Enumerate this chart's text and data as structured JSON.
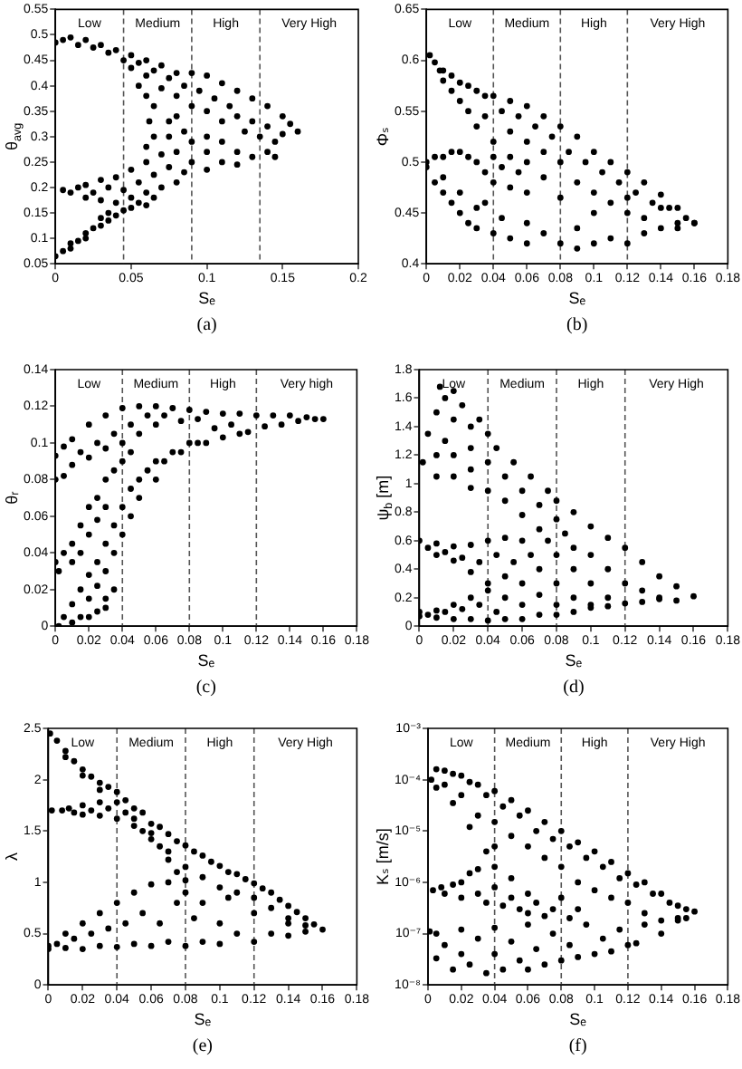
{
  "chart_data": [
    {
      "type": "scatter",
      "xlabel": "Sₑ",
      "ylabel": "θ$_{avg}$",
      "color": "#000000",
      "marker": "circle",
      "xlim": [
        0,
        0.2
      ],
      "xticks": [
        0,
        0.05,
        0.1,
        0.15,
        0.2
      ],
      "ylim": [
        0.05,
        0.55
      ],
      "yticks": [
        0.05,
        0.1,
        0.15,
        0.2,
        0.25,
        0.3,
        0.35,
        0.4,
        0.45,
        0.5,
        0.55
      ],
      "ref_lines": [
        {
          "axis": "x",
          "value": 0.045,
          "line_style": "dashed",
          "color": "#555555"
        },
        {
          "axis": "x",
          "value": 0.09,
          "line_style": "dashed",
          "color": "#555555"
        },
        {
          "axis": "x",
          "value": 0.135,
          "line_style": "dashed",
          "color": "#555555"
        }
      ],
      "annotations": [
        "Low",
        "Medium",
        "High",
        "Very High",
        "(a)"
      ],
      "x": [
        0,
        0.005,
        0.01,
        0.015,
        0.02,
        0.025,
        0.03,
        0.035,
        0.04,
        0.045,
        0.05,
        0.05,
        0.055,
        0.06,
        0.06,
        0.065,
        0.07,
        0.07,
        0.075,
        0.08,
        0.08,
        0.085,
        0.09,
        0.09,
        0.095,
        0.1,
        0.1,
        0.105,
        0.11,
        0.11,
        0.115,
        0.12,
        0.12,
        0.125,
        0.13,
        0.13,
        0.135,
        0.14,
        0.14,
        0.145,
        0.15,
        0.15,
        0.155,
        0.16,
        0.075,
        0.075,
        0.08,
        0.08,
        0.085,
        0.09,
        0.09,
        0.1,
        0.1,
        0.1,
        0.11,
        0.11,
        0.12,
        0.12,
        0.13,
        0.14,
        0.145,
        0.062,
        0.065,
        0.06,
        0.055,
        0.06,
        0.065,
        0.005,
        0.01,
        0.015,
        0.02,
        0.02,
        0.025,
        0.03,
        0.03,
        0.035,
        0.04,
        0.04,
        0.045,
        0.05,
        0.05,
        0.055,
        0.06,
        0.06,
        0.065,
        0.07,
        0.07,
        0.075,
        0.08,
        0.085,
        0,
        0.005,
        0.01,
        0.01,
        0.015,
        0.02,
        0.02,
        0.025,
        0.03,
        0.03,
        0.035,
        0.035,
        0.04,
        0.045,
        0.05,
        0.055,
        0.06,
        0.065
      ],
      "values": [
        0.485,
        0.49,
        0.495,
        0.48,
        0.49,
        0.475,
        0.48,
        0.465,
        0.47,
        0.45,
        0.46,
        0.435,
        0.445,
        0.45,
        0.42,
        0.43,
        0.44,
        0.395,
        0.415,
        0.425,
        0.38,
        0.4,
        0.425,
        0.36,
        0.39,
        0.42,
        0.35,
        0.375,
        0.405,
        0.33,
        0.36,
        0.39,
        0.34,
        0.31,
        0.375,
        0.33,
        0.3,
        0.36,
        0.32,
        0.29,
        0.34,
        0.305,
        0.325,
        0.31,
        0.33,
        0.3,
        0.34,
        0.27,
        0.31,
        0.29,
        0.25,
        0.3,
        0.27,
        0.235,
        0.29,
        0.25,
        0.27,
        0.245,
        0.26,
        0.27,
        0.26,
        0.33,
        0.3,
        0.28,
        0.4,
        0.38,
        0.36,
        0.195,
        0.19,
        0.2,
        0.18,
        0.205,
        0.19,
        0.215,
        0.175,
        0.2,
        0.22,
        0.17,
        0.195,
        0.235,
        0.18,
        0.21,
        0.25,
        0.19,
        0.225,
        0.265,
        0.2,
        0.24,
        0.21,
        0.23,
        0.065,
        0.075,
        0.08,
        0.09,
        0.095,
        0.1,
        0.11,
        0.12,
        0.14,
        0.125,
        0.15,
        0.135,
        0.145,
        0.155,
        0.16,
        0.17,
        0.165,
        0.18
      ]
    },
    {
      "type": "scatter",
      "xlabel": "Sₑ",
      "ylabel": "Φₛ",
      "color": "#000000",
      "marker": "circle",
      "xlim": [
        0,
        0.18
      ],
      "xticks": [
        0,
        0.02,
        0.04,
        0.06,
        0.08,
        0.1,
        0.12,
        0.14,
        0.16,
        0.18
      ],
      "ylim": [
        0.4,
        0.65
      ],
      "yticks": [
        0.4,
        0.45,
        0.5,
        0.55,
        0.6,
        0.65
      ],
      "ref_lines": [
        {
          "axis": "x",
          "value": 0.04,
          "line_style": "dashed",
          "color": "#555555"
        },
        {
          "axis": "x",
          "value": 0.08,
          "line_style": "dashed",
          "color": "#555555"
        },
        {
          "axis": "x",
          "value": 0.12,
          "line_style": "dashed",
          "color": "#555555"
        }
      ],
      "annotations": [
        "Low",
        "Medium",
        "High",
        "Very High",
        "(b)"
      ],
      "x": [
        0.002,
        0.005,
        0.008,
        0.01,
        0.01,
        0.015,
        0.015,
        0.02,
        0.02,
        0.025,
        0.025,
        0.03,
        0.03,
        0.035,
        0.035,
        0.04,
        0.04,
        0.045,
        0.05,
        0.05,
        0.055,
        0.06,
        0.06,
        0.065,
        0.07,
        0.07,
        0.075,
        0.08,
        0.085,
        0.09,
        0.095,
        0.1,
        0.105,
        0.11,
        0.115,
        0.12,
        0.125,
        0.13,
        0.135,
        0.14,
        0.145,
        0.15,
        0.155,
        0.16,
        0,
        0.005,
        0.01,
        0.015,
        0.02,
        0.025,
        0.03,
        0.035,
        0.04,
        0.04,
        0.045,
        0.05,
        0.05,
        0.055,
        0.06,
        0.06,
        0.07,
        0.08,
        0.08,
        0.09,
        0.1,
        0.1,
        0.11,
        0.12,
        0.12,
        0.13,
        0.14,
        0.15,
        0,
        0.005,
        0.01,
        0.01,
        0.015,
        0.02,
        0.02,
        0.025,
        0.03,
        0.03,
        0.035,
        0.04,
        0.045,
        0.05,
        0.06,
        0.06,
        0.07,
        0.08,
        0.09,
        0.09,
        0.1,
        0.11,
        0.12,
        0.13,
        0.14,
        0.15,
        0.16
      ],
      "values": [
        0.605,
        0.598,
        0.59,
        0.59,
        0.58,
        0.585,
        0.57,
        0.578,
        0.56,
        0.575,
        0.55,
        0.57,
        0.535,
        0.565,
        0.545,
        0.565,
        0.52,
        0.55,
        0.56,
        0.53,
        0.545,
        0.555,
        0.52,
        0.535,
        0.545,
        0.51,
        0.525,
        0.535,
        0.51,
        0.525,
        0.5,
        0.51,
        0.49,
        0.5,
        0.48,
        0.49,
        0.47,
        0.48,
        0.46,
        0.468,
        0.455,
        0.455,
        0.445,
        0.44,
        0.5,
        0.505,
        0.505,
        0.51,
        0.51,
        0.505,
        0.5,
        0.49,
        0.505,
        0.48,
        0.495,
        0.505,
        0.475,
        0.49,
        0.5,
        0.47,
        0.485,
        0.5,
        0.465,
        0.48,
        0.47,
        0.45,
        0.46,
        0.45,
        0.465,
        0.445,
        0.455,
        0.44,
        0.495,
        0.48,
        0.47,
        0.485,
        0.46,
        0.45,
        0.47,
        0.44,
        0.435,
        0.455,
        0.46,
        0.43,
        0.445,
        0.425,
        0.42,
        0.44,
        0.43,
        0.42,
        0.415,
        0.435,
        0.42,
        0.425,
        0.42,
        0.43,
        0.435,
        0.435,
        0.44
      ]
    },
    {
      "type": "scatter",
      "xlabel": "Sₑ",
      "ylabel": "θᵣ",
      "color": "#000000",
      "marker": "circle",
      "xlim": [
        0,
        0.18
      ],
      "xticks": [
        0,
        0.02,
        0.04,
        0.06,
        0.08,
        0.1,
        0.12,
        0.14,
        0.16,
        0.18
      ],
      "ylim": [
        0,
        0.14
      ],
      "yticks": [
        0,
        0.02,
        0.04,
        0.06,
        0.08,
        0.1,
        0.12,
        0.14
      ],
      "ref_lines": [
        {
          "axis": "x",
          "value": 0.04,
          "line_style": "dashed",
          "color": "#555555"
        },
        {
          "axis": "x",
          "value": 0.08,
          "line_style": "dashed",
          "color": "#555555"
        },
        {
          "axis": "x",
          "value": 0.12,
          "line_style": "dashed",
          "color": "#555555"
        }
      ],
      "annotations": [
        "Low",
        "Medium",
        "High",
        "Very high",
        "(c)"
      ],
      "x": [
        0,
        0,
        0.005,
        0.005,
        0.01,
        0.01,
        0.015,
        0.02,
        0.02,
        0.025,
        0.03,
        0.03,
        0.035,
        0.04,
        0.04,
        0.045,
        0.05,
        0.05,
        0.055,
        0.06,
        0.06,
        0.065,
        0.07,
        0.075,
        0.08,
        0.085,
        0.09,
        0.095,
        0.1,
        0.105,
        0.11,
        0.115,
        0.12,
        0.125,
        0.13,
        0.135,
        0.14,
        0.145,
        0.15,
        0.155,
        0.16,
        0.002,
        0.005,
        0.01,
        0.015,
        0.02,
        0.02,
        0.025,
        0.025,
        0.03,
        0.03,
        0.035,
        0.035,
        0.04,
        0.04,
        0.045,
        0.045,
        0.05,
        0.05,
        0.055,
        0.06,
        0.06,
        0.065,
        0.07,
        0.075,
        0.08,
        0.085,
        0.09,
        0.1,
        0.11,
        0,
        0.002,
        0.005,
        0.01,
        0.01,
        0.015,
        0.015,
        0.02,
        0.02,
        0.025,
        0.025,
        0.03,
        0.03,
        0.035,
        0.04,
        0.045,
        0.01,
        0.015,
        0.02,
        0.025,
        0.03,
        0.03,
        0.035
      ],
      "values": [
        0.08,
        0.093,
        0.098,
        0.082,
        0.102,
        0.088,
        0.095,
        0.11,
        0.092,
        0.1,
        0.115,
        0.097,
        0.105,
        0.119,
        0.1,
        0.11,
        0.12,
        0.105,
        0.115,
        0.12,
        0.11,
        0.115,
        0.119,
        0.112,
        0.118,
        0.113,
        0.117,
        0.108,
        0.116,
        0.11,
        0.116,
        0.106,
        0.115,
        0.109,
        0.115,
        0.11,
        0.115,
        0.112,
        0.114,
        0.113,
        0.113,
        0,
        0.005,
        0.012,
        0.02,
        0.028,
        0.015,
        0.035,
        0.022,
        0.045,
        0.03,
        0.055,
        0.04,
        0.065,
        0.05,
        0.075,
        0.06,
        0.08,
        0.07,
        0.085,
        0.09,
        0.08,
        0.09,
        0.095,
        0.095,
        0.1,
        0.1,
        0.1,
        0.103,
        0.105,
        0.035,
        0.03,
        0.04,
        0.045,
        0.035,
        0.055,
        0.04,
        0.065,
        0.05,
        0.07,
        0.058,
        0.08,
        0.065,
        0.085,
        0.09,
        0.095,
        0.002,
        0.005,
        0.005,
        0.008,
        0.01,
        0.015,
        0.02
      ]
    },
    {
      "type": "scatter",
      "xlabel": "Sₑ",
      "ylabel": "ψ$_{b}$ [m]",
      "color": "#000000",
      "marker": "circle",
      "xlim": [
        0,
        0.18
      ],
      "xticks": [
        0,
        0.02,
        0.04,
        0.06,
        0.08,
        0.1,
        0.12,
        0.14,
        0.16,
        0.18
      ],
      "ylim": [
        0,
        1.8
      ],
      "yticks": [
        0,
        0.2,
        0.4,
        0.6,
        0.8,
        1,
        1.2,
        1.4,
        1.6,
        1.8
      ],
      "ref_lines": [
        {
          "axis": "x",
          "value": 0.04,
          "line_style": "dashed",
          "color": "#555555"
        },
        {
          "axis": "x",
          "value": 0.08,
          "line_style": "dashed",
          "color": "#555555"
        },
        {
          "axis": "x",
          "value": 0.12,
          "line_style": "dashed",
          "color": "#555555"
        }
      ],
      "annotations": [
        "Low",
        "Medium",
        "High",
        "Very High",
        "(d)"
      ],
      "x": [
        0.012,
        0.015,
        0.02,
        0.01,
        0.02,
        0.025,
        0.005,
        0.015,
        0.03,
        0.035,
        0.002,
        0.01,
        0.02,
        0.03,
        0.04,
        0.01,
        0.02,
        0.03,
        0.04,
        0.045,
        0.03,
        0.04,
        0.05,
        0.055,
        0.05,
        0.06,
        0.065,
        0.06,
        0.07,
        0.075,
        0.07,
        0.08,
        0.08,
        0.075,
        0.085,
        0.09,
        0.09,
        0.1,
        0.1,
        0.11,
        0.11,
        0.12,
        0.12,
        0.13,
        0.13,
        0.14,
        0.14,
        0.15,
        0.15,
        0.16,
        0,
        0.005,
        0.01,
        0.01,
        0.015,
        0.02,
        0.02,
        0.025,
        0.03,
        0.03,
        0.035,
        0.04,
        0.04,
        0.045,
        0.05,
        0.05,
        0.055,
        0.06,
        0.06,
        0.065,
        0.07,
        0.08,
        0.08,
        0.09,
        0.09,
        0.1,
        0.11,
        0,
        0,
        0.005,
        0.01,
        0.01,
        0.015,
        0.02,
        0.02,
        0.025,
        0.03,
        0.03,
        0.035,
        0.04,
        0.04,
        0.045,
        0.05,
        0.05,
        0.06,
        0.06,
        0.07,
        0.07,
        0.08,
        0.08,
        0.09,
        0.1,
        0.1,
        0.11,
        0.12,
        0.13,
        0.14
      ],
      "values": [
        1.68,
        1.6,
        1.65,
        1.5,
        1.45,
        1.55,
        1.35,
        1.3,
        1.4,
        1.45,
        1.15,
        1.2,
        1.2,
        1.25,
        1.35,
        1.05,
        1.05,
        1.1,
        1.15,
        1.25,
        0.97,
        0.95,
        1.05,
        1.15,
        0.88,
        0.95,
        1.05,
        0.78,
        0.85,
        0.95,
        0.68,
        0.75,
        0.88,
        0.6,
        0.65,
        0.8,
        0.55,
        0.7,
        0.5,
        0.62,
        0.4,
        0.55,
        0.3,
        0.45,
        0.25,
        0.35,
        0.2,
        0.28,
        0.18,
        0.21,
        0.6,
        0.55,
        0.58,
        0.5,
        0.52,
        0.56,
        0.46,
        0.48,
        0.57,
        0.38,
        0.45,
        0.6,
        0.3,
        0.5,
        0.62,
        0.35,
        0.45,
        0.6,
        0.3,
        0.5,
        0.4,
        0.5,
        0.3,
        0.4,
        0.2,
        0.3,
        0.2,
        0.07,
        0.1,
        0.08,
        0.06,
        0.11,
        0.1,
        0.05,
        0.15,
        0.12,
        0.05,
        0.2,
        0.15,
        0.04,
        0.25,
        0.1,
        0.05,
        0.2,
        0.05,
        0.15,
        0.08,
        0.22,
        0.08,
        0.15,
        0.1,
        0.13,
        0.15,
        0.14,
        0.16,
        0.17,
        0.19
      ]
    },
    {
      "type": "scatter",
      "xlabel": "Sₑ",
      "ylabel": "λ",
      "color": "#000000",
      "marker": "circle",
      "xlim": [
        0,
        0.18
      ],
      "xticks": [
        0,
        0.02,
        0.04,
        0.06,
        0.08,
        0.1,
        0.12,
        0.14,
        0.16,
        0.18
      ],
      "ylim": [
        0,
        2.5
      ],
      "yticks": [
        0,
        0.5,
        1,
        1.5,
        2,
        2.5
      ],
      "ref_lines": [
        {
          "axis": "x",
          "value": 0.04,
          "line_style": "dashed",
          "color": "#555555"
        },
        {
          "axis": "x",
          "value": 0.08,
          "line_style": "dashed",
          "color": "#555555"
        },
        {
          "axis": "x",
          "value": 0.12,
          "line_style": "dashed",
          "color": "#555555"
        }
      ],
      "annotations": [
        "Low",
        "Medium",
        "High",
        "Very High",
        "(e)"
      ],
      "x": [
        0.001,
        0.005,
        0.01,
        0.01,
        0.015,
        0.02,
        0.02,
        0.025,
        0.03,
        0.03,
        0.035,
        0.04,
        0.04,
        0.045,
        0.05,
        0.05,
        0.055,
        0.06,
        0.06,
        0.065,
        0.07,
        0.07,
        0.075,
        0.08,
        0.08,
        0.085,
        0.09,
        0.09,
        0.095,
        0.1,
        0.1,
        0.105,
        0.11,
        0.11,
        0.115,
        0.12,
        0.12,
        0.125,
        0.13,
        0.13,
        0.135,
        0.14,
        0.14,
        0.145,
        0.15,
        0.15,
        0.155,
        0.16,
        0.002,
        0.008,
        0.012,
        0.015,
        0.02,
        0.02,
        0.025,
        0.03,
        0.03,
        0.035,
        0.04,
        0.045,
        0.05,
        0.055,
        0.06,
        0.065,
        0.07,
        0.075,
        0.08,
        0,
        0,
        0.005,
        0.01,
        0.01,
        0.015,
        0.02,
        0.02,
        0.025,
        0.03,
        0.03,
        0.035,
        0.04,
        0.04,
        0.045,
        0.05,
        0.05,
        0.055,
        0.06,
        0.06,
        0.065,
        0.07,
        0.07,
        0.075,
        0.08,
        0.08,
        0.085,
        0.09,
        0.09,
        0.1,
        0.1,
        0.105,
        0.11,
        0.12,
        0.12,
        0.13,
        0.14,
        0.14,
        0.15
      ],
      "values": [
        2.45,
        2.38,
        2.28,
        2.22,
        2.18,
        2.1,
        2.04,
        2.03,
        1.97,
        1.9,
        1.93,
        1.88,
        1.78,
        1.8,
        1.72,
        1.62,
        1.68,
        1.57,
        1.48,
        1.54,
        1.47,
        1.3,
        1.4,
        1.36,
        1.15,
        1.3,
        1.26,
        1.05,
        1.2,
        1.16,
        0.95,
        1.1,
        1.08,
        0.9,
        1.03,
        0.99,
        0.85,
        0.94,
        0.9,
        0.75,
        0.83,
        0.77,
        0.65,
        0.71,
        0.65,
        0.58,
        0.59,
        0.54,
        1.7,
        1.7,
        1.72,
        1.68,
        1.75,
        1.66,
        1.7,
        1.78,
        1.65,
        1.72,
        1.62,
        1.68,
        1.55,
        1.5,
        1.42,
        1.35,
        1.22,
        1.1,
        1.02,
        0.35,
        0.38,
        0.4,
        0.36,
        0.5,
        0.45,
        0.35,
        0.6,
        0.5,
        0.38,
        0.7,
        0.55,
        0.37,
        0.8,
        0.6,
        0.4,
        0.9,
        0.7,
        0.38,
        0.98,
        0.6,
        0.42,
        1.0,
        0.8,
        0.38,
        0.9,
        0.65,
        0.42,
        0.8,
        0.4,
        0.6,
        0.85,
        0.5,
        0.42,
        0.7,
        0.5,
        0.48,
        0.6,
        0.52
      ]
    },
    {
      "type": "scatter",
      "xlabel": "Sₑ",
      "ylabel": "Kₛ [m/s]",
      "color": "#000000",
      "marker": "circle",
      "log": "y",
      "xlim": [
        0,
        0.18
      ],
      "xticks": [
        0,
        0.02,
        0.04,
        0.06,
        0.08,
        0.1,
        0.12,
        0.14,
        0.16,
        0.18
      ],
      "ylim": [
        1e-08,
        0.001
      ],
      "yticks": [
        {
          "value": 1e-08,
          "label": "10⁻⁸"
        },
        {
          "value": 1e-07,
          "label": "10⁻⁷"
        },
        {
          "value": 1e-06,
          "label": "10⁻⁶"
        },
        {
          "value": 1e-05,
          "label": "10⁻⁵"
        },
        {
          "value": 0.0001,
          "label": "10⁻⁴"
        },
        {
          "value": 0.001,
          "label": "10⁻³"
        }
      ],
      "ref_lines": [
        {
          "axis": "x",
          "value": 0.04,
          "line_style": "dashed",
          "color": "#555555"
        },
        {
          "axis": "x",
          "value": 0.08,
          "line_style": "dashed",
          "color": "#555555"
        },
        {
          "axis": "x",
          "value": 0.12,
          "line_style": "dashed",
          "color": "#555555"
        }
      ],
      "annotations": [
        "Low",
        "Medium",
        "High",
        "Very High",
        "(f)"
      ],
      "x": [
        0.002,
        0.005,
        0.01,
        0.01,
        0.015,
        0.02,
        0.02,
        0.025,
        0.03,
        0.03,
        0.035,
        0.04,
        0.04,
        0.045,
        0.05,
        0.05,
        0.055,
        0.06,
        0.06,
        0.065,
        0.07,
        0.07,
        0.075,
        0.08,
        0.08,
        0.085,
        0.09,
        0.09,
        0.095,
        0.1,
        0.1,
        0.105,
        0.11,
        0.11,
        0.115,
        0.12,
        0.12,
        0.125,
        0.13,
        0.13,
        0.135,
        0.14,
        0.14,
        0.145,
        0.15,
        0.15,
        0.155,
        0.16,
        0.005,
        0.015,
        0.025,
        0.035,
        0.04,
        0.04,
        0.003,
        0.008,
        0.01,
        0.015,
        0.02,
        0.02,
        0.025,
        0.03,
        0.03,
        0.035,
        0.04,
        0.045,
        0.05,
        0.05,
        0.055,
        0.06,
        0.06,
        0.065,
        0.07,
        0.075,
        0.08,
        0.085,
        0.09,
        0.001,
        0.005,
        0.005,
        0.01,
        0.015,
        0.02,
        0.02,
        0.025,
        0.03,
        0.035,
        0.04,
        0.04,
        0.045,
        0.05,
        0.055,
        0.06,
        0.06,
        0.065,
        0.07,
        0.075,
        0.08,
        0.085,
        0.09,
        0.095,
        0.1,
        0.105,
        0.11,
        0.115,
        0.12,
        0.125,
        0.13,
        0.14,
        0.15,
        0.155
      ],
      "values": [
        0.0001,
        0.00016,
        0.00015,
        8e-05,
        0.00013,
        0.00012,
        5e-05,
        9e-05,
        8e-05,
        2e-05,
        5e-05,
        6e-05,
        1.5e-05,
        3e-05,
        4e-05,
        8e-06,
        2e-05,
        2.5e-05,
        5e-06,
        1e-05,
        1.5e-05,
        3e-06,
        7e-06,
        1e-05,
        2e-06,
        5e-06,
        6e-06,
        1e-06,
        3e-06,
        4e-06,
        7e-07,
        2e-06,
        2.5e-06,
        5e-07,
        1.2e-06,
        1.5e-06,
        4e-07,
        9e-07,
        1e-06,
        2.5e-07,
        6e-07,
        6e-07,
        1.8e-07,
        4e-07,
        3.5e-07,
        2e-07,
        3e-07,
        2.7e-07,
        7e-05,
        3.5e-05,
        1.2e-05,
        4e-06,
        2e-06,
        5e-06,
        7e-07,
        8e-07,
        6e-07,
        9e-07,
        5e-07,
        1e-06,
        1.5e-06,
        6e-07,
        1.8e-06,
        4e-07,
        8e-07,
        3.5e-07,
        5e-07,
        1.2e-06,
        3e-07,
        6e-07,
        2.5e-07,
        4e-07,
        2.2e-07,
        3e-07,
        5e-07,
        2e-07,
        3e-07,
        1.1e-07,
        3.3e-08,
        1e-07,
        6e-08,
        2e-08,
        1.2e-07,
        4e-08,
        2.5e-08,
        8e-08,
        1.7e-08,
        1.3e-07,
        4e-08,
        2e-08,
        7e-08,
        3e-08,
        1.5e-07,
        2e-08,
        5e-08,
        2.5e-08,
        1e-07,
        3e-08,
        6e-08,
        3.5e-08,
        1.5e-07,
        4e-08,
        8e-08,
        4.5e-08,
        1.2e-07,
        6e-08,
        6.5e-08,
        1.5e-07,
        1e-07,
        1.8e-07,
        2e-07
      ]
    }
  ]
}
